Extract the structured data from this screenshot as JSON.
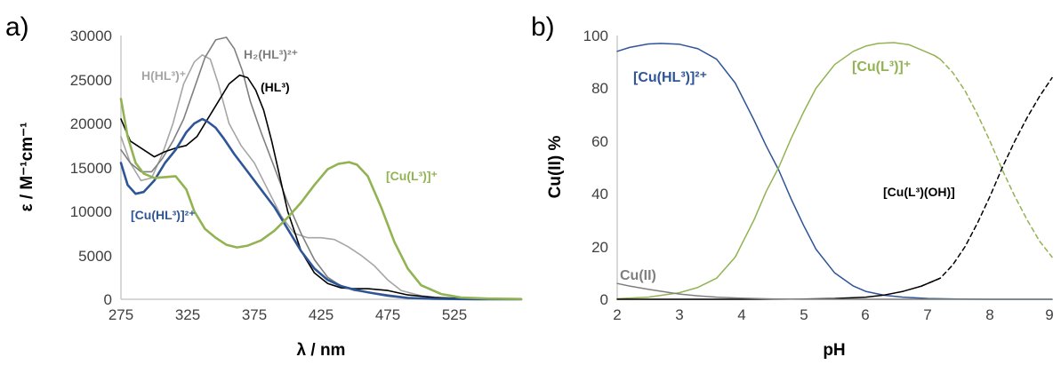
{
  "chart_data": [
    {
      "panel": "a)",
      "type": "line",
      "xlabel": "λ / nm",
      "ylabel": "ε / M⁻¹cm⁻¹",
      "xlim": [
        275,
        575
      ],
      "ylim": [
        0,
        30000
      ],
      "xticks": [
        "275",
        "325",
        "375",
        "425",
        "475",
        "525"
      ],
      "yticks": [
        "0",
        "5000",
        "10000",
        "15000",
        "20000",
        "25000",
        "30000"
      ],
      "series": [
        {
          "name": "H(HL3)+",
          "color": "#a6a6a6",
          "x": [
            275,
            282,
            290,
            298,
            306,
            314,
            322,
            330,
            336,
            342,
            348,
            356,
            365,
            375,
            385,
            395,
            405,
            415,
            425,
            435,
            445,
            455,
            465,
            475,
            485,
            500,
            520,
            575
          ],
          "y": [
            18500,
            15500,
            13500,
            13800,
            16500,
            20000,
            24500,
            27000,
            27800,
            27300,
            24500,
            20000,
            17500,
            15500,
            12500,
            9500,
            7500,
            7000,
            7000,
            6800,
            6000,
            5000,
            3800,
            2200,
            1000,
            400,
            100,
            50
          ]
        },
        {
          "name": "H2(HL3)2+",
          "color": "#7f7f7f",
          "x": [
            275,
            282,
            290,
            298,
            306,
            314,
            322,
            330,
            338,
            346,
            354,
            360,
            366,
            372,
            380,
            390,
            400,
            410,
            420,
            430,
            440,
            450,
            460,
            475,
            490,
            510,
            540,
            575
          ],
          "y": [
            17000,
            15500,
            14500,
            14500,
            16000,
            18000,
            20500,
            24000,
            27500,
            29500,
            29800,
            28500,
            26000,
            22500,
            19000,
            15000,
            11000,
            7500,
            4500,
            2500,
            1500,
            1000,
            800,
            500,
            200,
            80,
            30,
            10
          ]
        },
        {
          "name": "(HL3)",
          "color": "#000000",
          "x": [
            275,
            282,
            290,
            300,
            308,
            316,
            324,
            332,
            340,
            348,
            356,
            364,
            370,
            376,
            382,
            388,
            394,
            400,
            410,
            420,
            430,
            440,
            450,
            460,
            475,
            490,
            510,
            540,
            575
          ],
          "y": [
            20500,
            18000,
            17200,
            16200,
            16800,
            17200,
            17500,
            18500,
            20500,
            22500,
            24500,
            25500,
            25200,
            23800,
            21500,
            18000,
            14000,
            10000,
            5500,
            3000,
            1800,
            1300,
            1200,
            1200,
            1000,
            500,
            200,
            50,
            10
          ]
        },
        {
          "name": "[Cu(HL3)]2+",
          "color": "#2e5597",
          "x": [
            275,
            280,
            286,
            292,
            300,
            308,
            316,
            324,
            330,
            336,
            340,
            346,
            352,
            360,
            370,
            380,
            390,
            400,
            410,
            420,
            430,
            440,
            450,
            460,
            475,
            490,
            510,
            540,
            575
          ],
          "y": [
            15500,
            13000,
            12000,
            12200,
            13500,
            15500,
            17000,
            19000,
            20000,
            20500,
            20200,
            19500,
            18300,
            16500,
            14500,
            12500,
            10500,
            8000,
            5500,
            3500,
            2200,
            1500,
            1100,
            800,
            400,
            150,
            50,
            10,
            0
          ]
        },
        {
          "name": "[Cu(L3)]+",
          "color": "#92b352",
          "x": [
            275,
            280,
            286,
            292,
            300,
            308,
            316,
            324,
            330,
            338,
            346,
            354,
            362,
            370,
            380,
            390,
            400,
            410,
            420,
            430,
            438,
            446,
            452,
            460,
            470,
            480,
            490,
            500,
            515,
            530,
            550,
            575
          ],
          "y": [
            22800,
            18500,
            15500,
            14300,
            13800,
            13900,
            14000,
            12500,
            10000,
            8000,
            7000,
            6200,
            5900,
            6100,
            6700,
            7800,
            9300,
            11000,
            13000,
            14800,
            15400,
            15600,
            15300,
            14000,
            10500,
            6500,
            3500,
            1600,
            600,
            200,
            80,
            30
          ]
        }
      ],
      "annotations": [
        {
          "text": "H(HL³)⁺",
          "series": "H(HL3)+",
          "color": "#a6a6a6"
        },
        {
          "text": "H₂(HL³)²⁺",
          "series": "H2(HL3)2+",
          "color": "#7f7f7f"
        },
        {
          "text": "(HL³)",
          "series": "(HL3)",
          "color": "#000000"
        },
        {
          "text": "[Cu(HL³)]²⁺",
          "series": "[Cu(HL3)]2+",
          "color": "#2e5597"
        },
        {
          "text": "[Cu(L³)]⁺",
          "series": "[Cu(L3)]+",
          "color": "#92b352"
        }
      ]
    },
    {
      "panel": "b)",
      "type": "line",
      "xlabel": "pH",
      "ylabel": "Cu(II) %",
      "xlim": [
        2,
        9
      ],
      "ylim": [
        0,
        100
      ],
      "xticks": [
        "2",
        "3",
        "4",
        "5",
        "6",
        "7",
        "8",
        "9"
      ],
      "yticks": [
        "0",
        "20",
        "40",
        "60",
        "80",
        "100"
      ],
      "series": [
        {
          "name": "[Cu(HL3)]2+",
          "color": "#2e5597",
          "dashed_from": null,
          "x": [
            2.0,
            2.2,
            2.5,
            2.7,
            3.0,
            3.3,
            3.6,
            3.9,
            4.2,
            4.4,
            4.6,
            4.8,
            5.0,
            5.2,
            5.5,
            5.8,
            6.0,
            6.3,
            6.6,
            7.0,
            7.5,
            8.0,
            9.0
          ],
          "y": [
            94,
            95.5,
            96.8,
            97,
            96.7,
            95,
            91,
            82,
            68,
            58,
            49,
            38,
            28,
            19,
            10,
            5,
            3,
            1.5,
            0.8,
            0.3,
            0.1,
            0,
            0
          ]
        },
        {
          "name": "[Cu(L3)]+",
          "color": "#92b352",
          "dashed_from": 7.2,
          "x": [
            2.0,
            2.5,
            3.0,
            3.3,
            3.6,
            3.9,
            4.2,
            4.4,
            4.6,
            4.8,
            5.0,
            5.2,
            5.5,
            5.8,
            6.0,
            6.2,
            6.45,
            6.7,
            6.9,
            7.1,
            7.2,
            7.4,
            7.6,
            7.8,
            8.0,
            8.2,
            8.4,
            8.6,
            8.8,
            9.0
          ],
          "y": [
            0.2,
            0.8,
            2.5,
            4.5,
            8,
            16,
            30,
            41,
            50,
            61,
            71,
            80,
            89,
            94,
            96,
            97,
            97.3,
            96.5,
            94.5,
            92.5,
            91,
            86,
            79,
            70,
            60,
            49,
            39,
            30,
            22,
            16
          ]
        },
        {
          "name": "[Cu(L3)(OH)]",
          "color": "#000000",
          "dashed_from": 7.2,
          "x": [
            2.0,
            3.0,
            4.0,
            5.0,
            5.5,
            6.0,
            6.3,
            6.6,
            6.9,
            7.2,
            7.4,
            7.6,
            7.8,
            8.0,
            8.2,
            8.4,
            8.6,
            8.8,
            9.0
          ],
          "y": [
            0,
            0,
            0,
            0.1,
            0.3,
            0.8,
            1.6,
            3,
            5,
            8,
            13,
            20,
            29,
            39,
            50,
            60,
            69,
            77,
            84
          ]
        },
        {
          "name": "Cu(II)",
          "color": "#7f7f7f",
          "dashed_from": null,
          "x": [
            2.0,
            2.2,
            2.5,
            2.8,
            3.0,
            3.3,
            3.6,
            4.0,
            4.5,
            5.0,
            6.0,
            9.0
          ],
          "y": [
            6,
            5,
            3.8,
            2.7,
            2,
            1.3,
            0.8,
            0.4,
            0.15,
            0.05,
            0,
            0
          ]
        }
      ],
      "annotations": [
        {
          "text": "[Cu(HL³)]²⁺",
          "series": "[Cu(HL3)]2+",
          "color": "#2e5597"
        },
        {
          "text": "[Cu(L³)]⁺",
          "series": "[Cu(L3)]+",
          "color": "#92b352"
        },
        {
          "text": "[Cu(L³)(OH)]",
          "series": "[Cu(L3)(OH)]",
          "color": "#000000"
        },
        {
          "text": "Cu(II)",
          "series": "Cu(II)",
          "color": "#7f7f7f"
        }
      ]
    }
  ]
}
